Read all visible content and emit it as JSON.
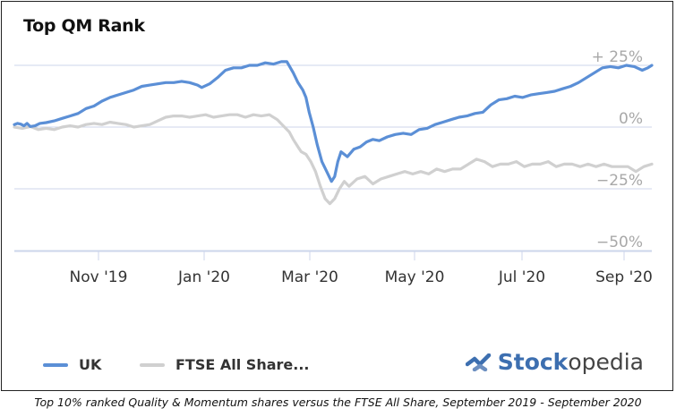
{
  "title": "Top QM Rank",
  "caption": "Top 10% ranked Quality & Momentum shares versus the FTSE All Share, September 2019 - September 2020",
  "brand": {
    "strong": "Stock",
    "rest": "opedia"
  },
  "colors": {
    "uk": "#5b8fd6",
    "ftse": "#d0d0d0",
    "grid": "#ccd6eb",
    "axis": "#ccd6eb"
  },
  "chart_data": {
    "type": "line",
    "ylim": [
      -50,
      25
    ],
    "y_ticks": [
      {
        "value": 25,
        "label": "+ 25%"
      },
      {
        "value": 0,
        "label": "0%"
      },
      {
        "value": -25,
        "label": "−25%"
      },
      {
        "value": -50,
        "label": "−50%"
      }
    ],
    "x_ticks": [
      "Nov '19",
      "Jan '20",
      "Mar '20",
      "May '20",
      "Jul '20",
      "Sep '20"
    ],
    "legend": [
      "UK",
      "FTSE All Share..."
    ],
    "grid": true,
    "series": [
      {
        "name": "UK",
        "color": "#5b8fd6",
        "points": [
          [
            0,
            1
          ],
          [
            0.04,
            1.5
          ],
          [
            0.08,
            1.2
          ],
          [
            0.12,
            0.5
          ],
          [
            0.16,
            1.5
          ],
          [
            0.2,
            0.2
          ],
          [
            0.26,
            0.5
          ],
          [
            0.32,
            1.5
          ],
          [
            0.4,
            1.8
          ],
          [
            0.5,
            2.5
          ],
          [
            0.6,
            3.5
          ],
          [
            0.7,
            4.5
          ],
          [
            0.8,
            5.5
          ],
          [
            0.9,
            7.5
          ],
          [
            1.0,
            8.5
          ],
          [
            1.1,
            10.5
          ],
          [
            1.2,
            12
          ],
          [
            1.3,
            13
          ],
          [
            1.4,
            14
          ],
          [
            1.5,
            15
          ],
          [
            1.6,
            16.5
          ],
          [
            1.7,
            17
          ],
          [
            1.8,
            17.5
          ],
          [
            1.9,
            18
          ],
          [
            2.0,
            18
          ],
          [
            2.1,
            18.5
          ],
          [
            2.2,
            18
          ],
          [
            2.3,
            17
          ],
          [
            2.35,
            16
          ],
          [
            2.45,
            17.5
          ],
          [
            2.55,
            20
          ],
          [
            2.65,
            23
          ],
          [
            2.75,
            24
          ],
          [
            2.85,
            24
          ],
          [
            2.95,
            25
          ],
          [
            3.05,
            25
          ],
          [
            3.15,
            26
          ],
          [
            3.25,
            25.5
          ],
          [
            3.35,
            26.5
          ],
          [
            3.42,
            26.5
          ],
          [
            3.5,
            22
          ],
          [
            3.56,
            18
          ],
          [
            3.62,
            15
          ],
          [
            3.66,
            12
          ],
          [
            3.7,
            6
          ],
          [
            3.75,
            0
          ],
          [
            3.8,
            -7
          ],
          [
            3.86,
            -14
          ],
          [
            3.92,
            -18
          ],
          [
            3.98,
            -22
          ],
          [
            4.02,
            -20
          ],
          [
            4.06,
            -14
          ],
          [
            4.1,
            -10
          ],
          [
            4.18,
            -12
          ],
          [
            4.26,
            -9
          ],
          [
            4.34,
            -8
          ],
          [
            4.42,
            -6
          ],
          [
            4.5,
            -5
          ],
          [
            4.58,
            -5.5
          ],
          [
            4.68,
            -4
          ],
          [
            4.78,
            -3
          ],
          [
            4.88,
            -2.5
          ],
          [
            4.98,
            -3
          ],
          [
            5.08,
            -1
          ],
          [
            5.18,
            -0.5
          ],
          [
            5.28,
            1
          ],
          [
            5.38,
            2
          ],
          [
            5.48,
            3
          ],
          [
            5.58,
            4
          ],
          [
            5.68,
            4.5
          ],
          [
            5.78,
            5.5
          ],
          [
            5.88,
            6
          ],
          [
            5.98,
            9
          ],
          [
            6.08,
            11
          ],
          [
            6.18,
            11.5
          ],
          [
            6.28,
            12.5
          ],
          [
            6.38,
            12
          ],
          [
            6.48,
            13
          ],
          [
            6.58,
            13.5
          ],
          [
            6.68,
            14
          ],
          [
            6.78,
            14.5
          ],
          [
            6.88,
            15.5
          ],
          [
            6.98,
            16.5
          ],
          [
            7.08,
            18
          ],
          [
            7.18,
            20
          ],
          [
            7.28,
            22
          ],
          [
            7.38,
            24
          ],
          [
            7.48,
            24.5
          ],
          [
            7.58,
            24
          ],
          [
            7.68,
            25
          ],
          [
            7.78,
            24.5
          ],
          [
            7.88,
            23
          ],
          [
            7.95,
            24
          ],
          [
            8.0,
            25
          ]
        ]
      },
      {
        "name": "FTSE All Share...",
        "color": "#d0d0d0",
        "points": [
          [
            0,
            0
          ],
          [
            0.1,
            -0.5
          ],
          [
            0.2,
            0.2
          ],
          [
            0.3,
            -1
          ],
          [
            0.4,
            -0.5
          ],
          [
            0.5,
            -1
          ],
          [
            0.6,
            0
          ],
          [
            0.7,
            0.5
          ],
          [
            0.8,
            0
          ],
          [
            0.9,
            1
          ],
          [
            1.0,
            1.5
          ],
          [
            1.1,
            1
          ],
          [
            1.2,
            2
          ],
          [
            1.3,
            1.5
          ],
          [
            1.4,
            1
          ],
          [
            1.5,
            0
          ],
          [
            1.6,
            0.5
          ],
          [
            1.7,
            1
          ],
          [
            1.8,
            2.5
          ],
          [
            1.9,
            4
          ],
          [
            2.0,
            4.5
          ],
          [
            2.1,
            4.5
          ],
          [
            2.2,
            4
          ],
          [
            2.3,
            4.5
          ],
          [
            2.4,
            5
          ],
          [
            2.5,
            4
          ],
          [
            2.6,
            4.5
          ],
          [
            2.7,
            5
          ],
          [
            2.8,
            5
          ],
          [
            2.9,
            4
          ],
          [
            3.0,
            5
          ],
          [
            3.1,
            4.5
          ],
          [
            3.2,
            5
          ],
          [
            3.3,
            3
          ],
          [
            3.36,
            1
          ],
          [
            3.45,
            -2
          ],
          [
            3.5,
            -5
          ],
          [
            3.56,
            -8
          ],
          [
            3.6,
            -10
          ],
          [
            3.66,
            -11
          ],
          [
            3.72,
            -14
          ],
          [
            3.78,
            -18
          ],
          [
            3.84,
            -24
          ],
          [
            3.9,
            -29
          ],
          [
            3.96,
            -31
          ],
          [
            4.02,
            -29
          ],
          [
            4.08,
            -25
          ],
          [
            4.14,
            -22
          ],
          [
            4.2,
            -24
          ],
          [
            4.3,
            -21
          ],
          [
            4.4,
            -20
          ],
          [
            4.5,
            -23
          ],
          [
            4.6,
            -21
          ],
          [
            4.7,
            -20
          ],
          [
            4.8,
            -19
          ],
          [
            4.9,
            -18
          ],
          [
            5.0,
            -19
          ],
          [
            5.1,
            -18
          ],
          [
            5.2,
            -19
          ],
          [
            5.3,
            -17
          ],
          [
            5.4,
            -18
          ],
          [
            5.5,
            -17
          ],
          [
            5.6,
            -17
          ],
          [
            5.7,
            -15
          ],
          [
            5.8,
            -13
          ],
          [
            5.9,
            -14
          ],
          [
            6.0,
            -16
          ],
          [
            6.1,
            -15
          ],
          [
            6.2,
            -15
          ],
          [
            6.3,
            -14
          ],
          [
            6.4,
            -16
          ],
          [
            6.5,
            -15
          ],
          [
            6.6,
            -15
          ],
          [
            6.7,
            -14
          ],
          [
            6.8,
            -16
          ],
          [
            6.9,
            -15
          ],
          [
            7.0,
            -15
          ],
          [
            7.1,
            -16
          ],
          [
            7.2,
            -15
          ],
          [
            7.3,
            -16
          ],
          [
            7.4,
            -15
          ],
          [
            7.5,
            -16
          ],
          [
            7.6,
            -16
          ],
          [
            7.7,
            -16
          ],
          [
            7.8,
            -18
          ],
          [
            7.9,
            -16
          ],
          [
            8.0,
            -15
          ]
        ]
      }
    ]
  }
}
